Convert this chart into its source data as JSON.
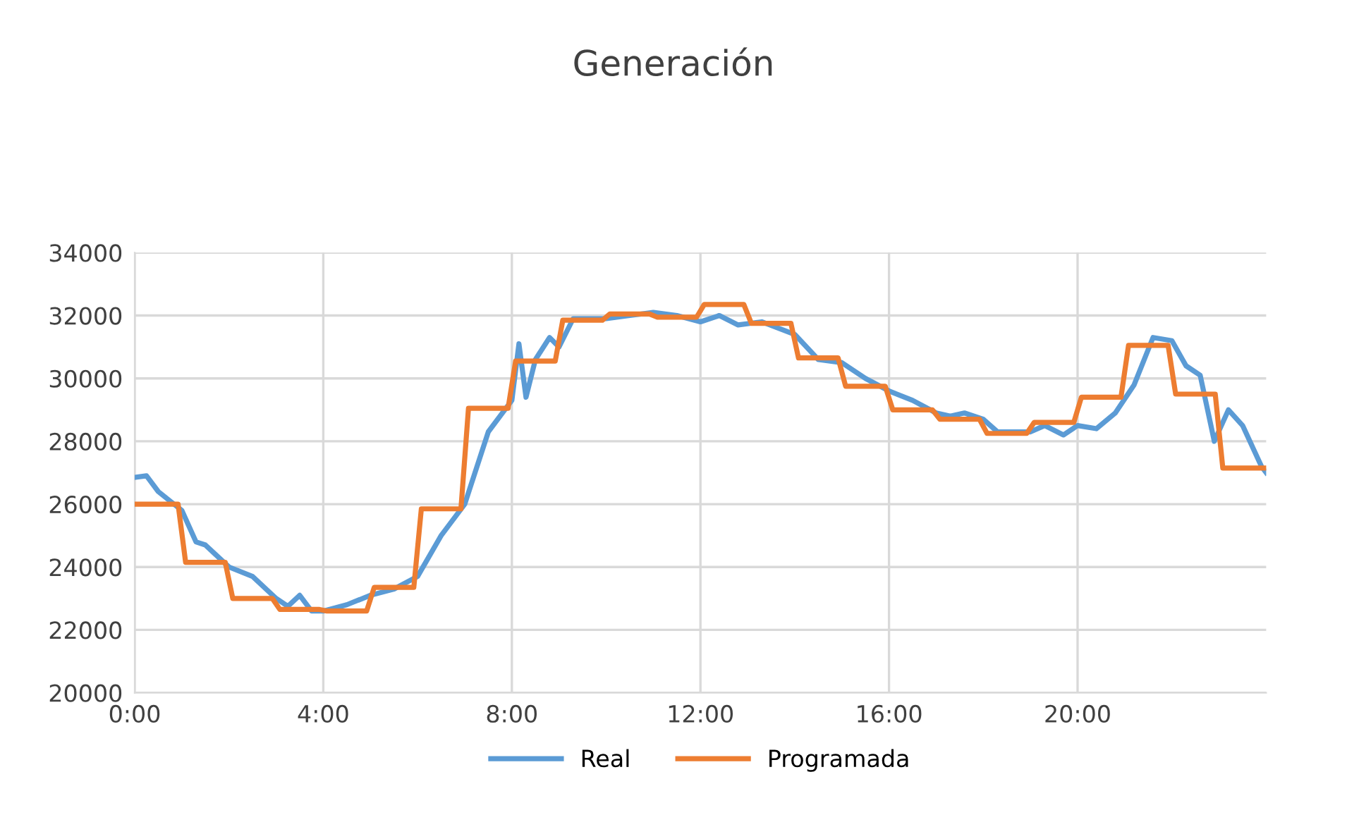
{
  "chart_data": {
    "type": "line",
    "title": "Generación",
    "xlim": [
      0,
      24
    ],
    "xticks": [
      {
        "value": 0,
        "label": "0:00"
      },
      {
        "value": 4,
        "label": "4:00"
      },
      {
        "value": 8,
        "label": "8:00"
      },
      {
        "value": 12,
        "label": "12:00"
      },
      {
        "value": 16,
        "label": "16:00"
      },
      {
        "value": 20,
        "label": "20:00"
      }
    ],
    "ylim": [
      20000,
      34000
    ],
    "yticks": [
      20000,
      22000,
      24000,
      26000,
      28000,
      30000,
      32000,
      34000
    ],
    "grid": true,
    "legend": "bottom",
    "line_style": "solid",
    "series": [
      {
        "name": "Real",
        "color": "#5b9bd5",
        "x": [
          0,
          0.25,
          0.5,
          1,
          1.3,
          1.5,
          2,
          2.5,
          3,
          3.25,
          3.5,
          3.75,
          4,
          4.5,
          5,
          5.5,
          6,
          6.5,
          7,
          7.5,
          8,
          8.15,
          8.3,
          8.5,
          8.8,
          9,
          9.3,
          10,
          10.5,
          11,
          11.5,
          12,
          12.4,
          12.8,
          13.3,
          14,
          14.5,
          15,
          15.5,
          16,
          16.5,
          17,
          17.3,
          17.6,
          18,
          18.3,
          19,
          19.3,
          19.7,
          20,
          20.4,
          20.8,
          21.2,
          21.6,
          22,
          22.3,
          22.6,
          22.9,
          23.2,
          23.5,
          23.9,
          24
        ],
        "values": [
          26850,
          26900,
          26400,
          25800,
          24800,
          24700,
          24000,
          23700,
          23000,
          22750,
          23100,
          22600,
          22600,
          22800,
          23100,
          23300,
          23700,
          25000,
          26000,
          28300,
          29300,
          31100,
          29400,
          30600,
          31300,
          31000,
          31900,
          31900,
          32000,
          32100,
          32000,
          31800,
          32000,
          31700,
          31800,
          31400,
          30600,
          30500,
          30000,
          29600,
          29300,
          28900,
          28800,
          28900,
          28700,
          28300,
          28300,
          28500,
          28200,
          28500,
          28400,
          28900,
          29800,
          31300,
          31200,
          30400,
          30100,
          28000,
          29000,
          28500,
          27200,
          27000
        ]
      },
      {
        "name": "Programada",
        "color": "#ed7d31",
        "x": [
          0,
          0.92,
          1.08,
          1.92,
          2.08,
          2.92,
          3.08,
          3.92,
          4.08,
          4.92,
          5.08,
          5.92,
          6.08,
          6.92,
          7.08,
          7.92,
          8.08,
          8.92,
          9.08,
          9.92,
          10.08,
          10.92,
          11.08,
          11.92,
          12.08,
          12.92,
          13.08,
          13.92,
          14.08,
          14.92,
          15.08,
          15.92,
          16.08,
          16.92,
          17.08,
          17.92,
          18.08,
          18.92,
          19.08,
          19.92,
          20.08,
          20.92,
          21.08,
          21.92,
          22.08,
          22.92,
          23.08,
          24
        ],
        "values": [
          26000,
          26000,
          24150,
          24150,
          23000,
          23000,
          22650,
          22650,
          22600,
          22600,
          23350,
          23350,
          25850,
          25850,
          29050,
          29050,
          30550,
          30550,
          31850,
          31850,
          32050,
          32050,
          31950,
          31950,
          32350,
          32350,
          31750,
          31750,
          30650,
          30650,
          29750,
          29750,
          29000,
          29000,
          28700,
          28700,
          28250,
          28250,
          28600,
          28600,
          29400,
          29400,
          31050,
          31050,
          29500,
          29500,
          27150,
          27150
        ]
      }
    ]
  }
}
